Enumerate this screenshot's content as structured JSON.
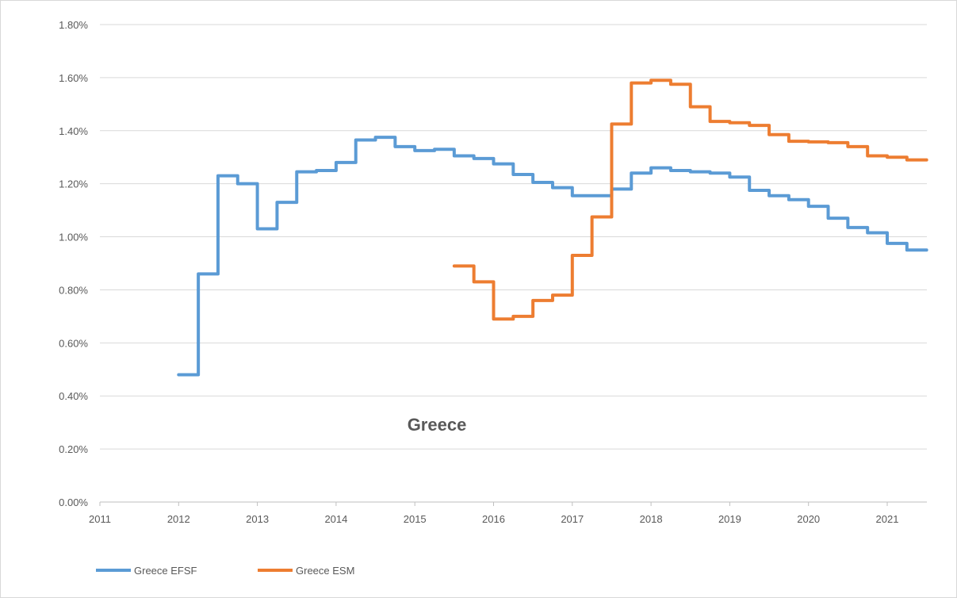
{
  "chart_data": {
    "type": "line",
    "step": true,
    "title": "Greece",
    "xlabel": "",
    "ylabel": "",
    "xlim": [
      2011,
      2021.5
    ],
    "ylim": [
      0,
      1.8
    ],
    "x_ticks": [
      "2011",
      "2012",
      "2013",
      "2014",
      "2015",
      "2016",
      "2017",
      "2018",
      "2019",
      "2020",
      "2021"
    ],
    "y_ticks": [
      "0.00%",
      "0.20%",
      "0.40%",
      "0.60%",
      "0.80%",
      "1.00%",
      "1.20%",
      "1.40%",
      "1.60%",
      "1.80%"
    ],
    "grid": "horizontal",
    "legend": "bottom-left",
    "series": [
      {
        "name": "Greece EFSF",
        "color": "#5b9bd5",
        "x": [
          2012.0,
          2012.25,
          2012.5,
          2012.75,
          2013.0,
          2013.25,
          2013.5,
          2013.75,
          2014.0,
          2014.25,
          2014.5,
          2014.75,
          2015.0,
          2015.25,
          2015.5,
          2015.75,
          2016.0,
          2016.25,
          2016.5,
          2016.75,
          2017.0,
          2017.25,
          2017.5,
          2017.75,
          2018.0,
          2018.25,
          2018.5,
          2018.75,
          2019.0,
          2019.25,
          2019.5,
          2019.75,
          2020.0,
          2020.25,
          2020.5,
          2020.75,
          2021.0,
          2021.25,
          2021.5
        ],
        "y": [
          0.48,
          0.86,
          1.23,
          1.2,
          1.03,
          1.13,
          1.245,
          1.25,
          1.28,
          1.365,
          1.375,
          1.34,
          1.325,
          1.33,
          1.305,
          1.295,
          1.275,
          1.235,
          1.205,
          1.185,
          1.155,
          1.155,
          1.18,
          1.24,
          1.26,
          1.25,
          1.245,
          1.24,
          1.225,
          1.175,
          1.155,
          1.14,
          1.115,
          1.07,
          1.035,
          1.015,
          0.975,
          0.95,
          0.95
        ]
      },
      {
        "name": "Greece ESM",
        "color": "#ed7d31",
        "x": [
          2015.5,
          2015.75,
          2016.0,
          2016.25,
          2016.5,
          2016.75,
          2017.0,
          2017.25,
          2017.5,
          2017.75,
          2018.0,
          2018.25,
          2018.5,
          2018.75,
          2019.0,
          2019.25,
          2019.5,
          2019.75,
          2020.0,
          2020.25,
          2020.5,
          2020.75,
          2021.0,
          2021.25,
          2021.5
        ],
        "y": [
          0.89,
          0.83,
          0.69,
          0.7,
          0.76,
          0.78,
          0.93,
          1.075,
          1.425,
          1.58,
          1.59,
          1.575,
          1.49,
          1.435,
          1.43,
          1.42,
          1.385,
          1.36,
          1.358,
          1.355,
          1.34,
          1.305,
          1.3,
          1.29,
          1.29
        ]
      }
    ]
  }
}
